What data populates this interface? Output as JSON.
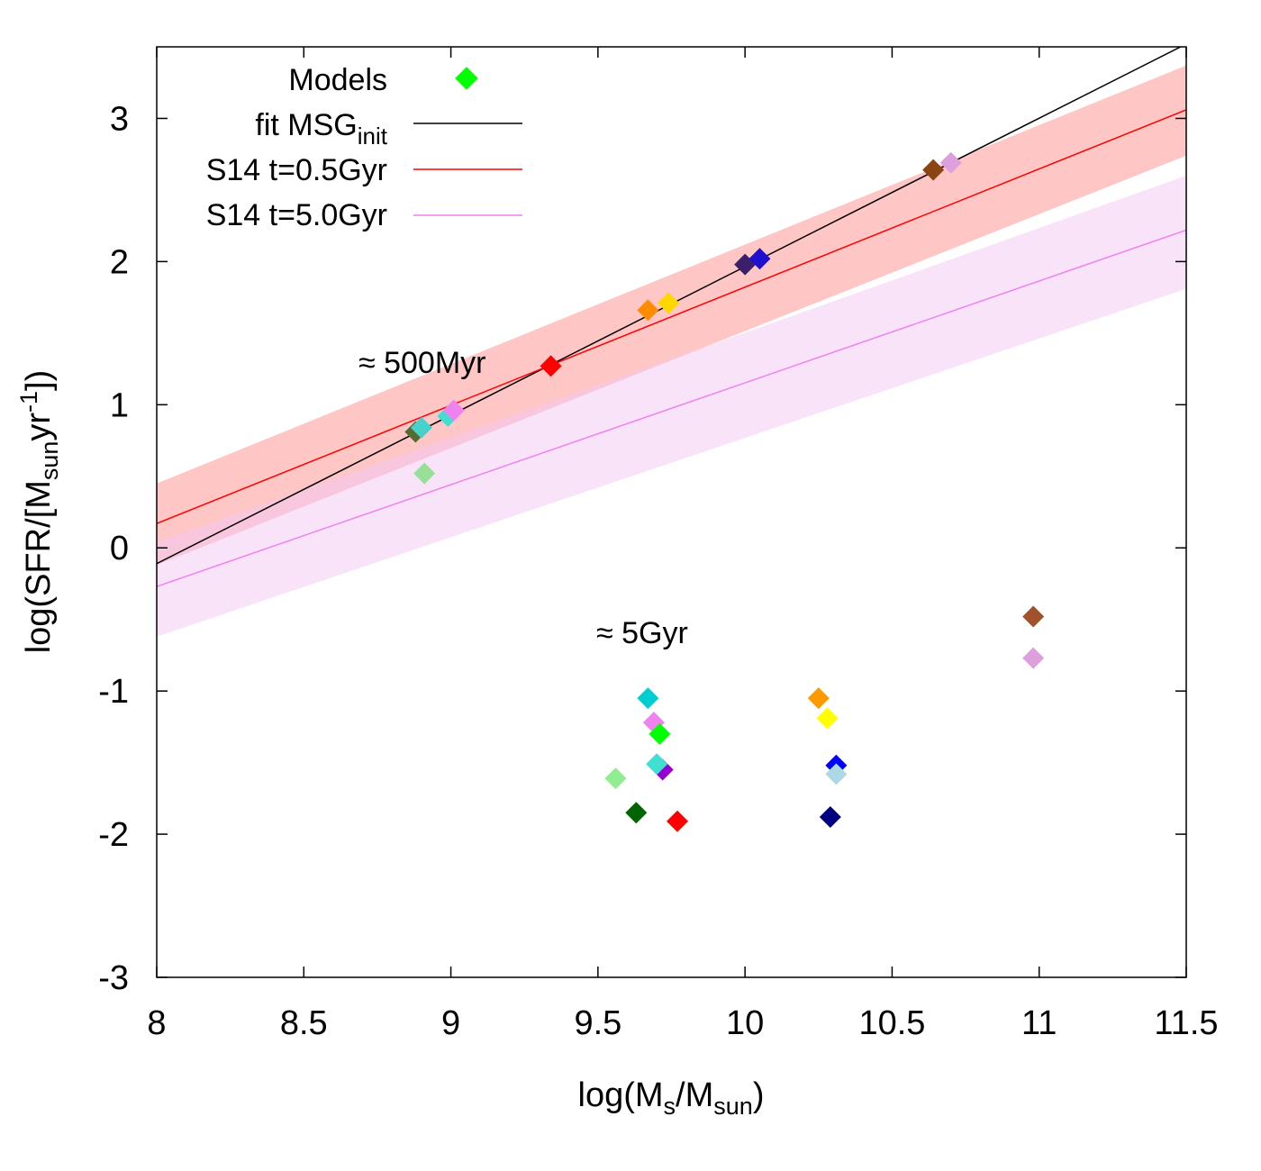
{
  "chart_data": {
    "type": "scatter",
    "xlabel": {
      "base": "log(M",
      "sub1": "s",
      "mid": "/M",
      "sub2": "sun",
      "end": ")"
    },
    "ylabel": {
      "base": "log(SFR/[M",
      "sub": "sun",
      "mid": "yr",
      "sup": "-1",
      "end": "])"
    },
    "xlim": [
      8,
      11.5
    ],
    "ylim": [
      -3,
      3.5
    ],
    "xticks": [
      8,
      8.5,
      9,
      9.5,
      10,
      10.5,
      11,
      11.5
    ],
    "xtick_labels": [
      "8",
      "8.5",
      "9",
      "9.5",
      "10",
      "10.5",
      "11",
      "11.5"
    ],
    "yticks": [
      -3,
      -2,
      -1,
      0,
      1,
      2,
      3
    ],
    "ytick_labels": [
      "-3",
      "-2",
      "-1",
      "0",
      "1",
      "2",
      "3"
    ],
    "legend": {
      "position": "top-left",
      "entries": [
        {
          "label": "Models",
          "marker": "diamond",
          "color": "#00ff00"
        },
        {
          "label": "fit MSG",
          "sub": "init",
          "color": "#000000"
        },
        {
          "label": "S14 t=0.5Gyr",
          "color": "#ff0000"
        },
        {
          "label": "S14 t=5.0Gyr",
          "color": "#ee82ee"
        }
      ]
    },
    "annotations": [
      {
        "text": "≈ 500Myr",
        "x": 9.0,
        "y": 1.3
      },
      {
        "text": "≈ 5Gyr",
        "x": 9.5,
        "y": -0.6
      }
    ],
    "lines": [
      {
        "name": "fit MSG_init",
        "color": "#000000",
        "x": [
          8.0,
          11.5
        ],
        "y": [
          -0.11,
          3.52
        ]
      },
      {
        "name": "S14 t=0.5Gyr",
        "color": "#ff0000",
        "x": [
          8.0,
          11.5
        ],
        "y": [
          0.17,
          3.06
        ]
      },
      {
        "name": "S14 t=5.0Gyr",
        "color": "#ee82ee",
        "x": [
          8.0,
          11.5
        ],
        "y": [
          -0.27,
          2.22
        ]
      }
    ],
    "bands": [
      {
        "name": "S14 t=0.5Gyr scatter",
        "color": "#ffb3b3",
        "opacity": 0.75,
        "x": [
          8.0,
          11.5
        ],
        "upper": [
          0.45,
          3.37
        ],
        "lower": [
          -0.12,
          2.74
        ]
      },
      {
        "name": "S14 t=5.0Gyr scatter",
        "color": "#f3c8f3",
        "opacity": 0.5,
        "x": [
          8.0,
          11.5
        ],
        "upper": [
          0.04,
          2.6
        ],
        "lower": [
          -0.62,
          1.81
        ]
      }
    ],
    "series": [
      {
        "name": "Models (≈500Myr)",
        "points": [
          {
            "x": 8.88,
            "y": 0.81,
            "color": "#556b2f"
          },
          {
            "x": 8.9,
            "y": 0.84,
            "color": "#48d1cc"
          },
          {
            "x": 8.91,
            "y": 0.52,
            "color": "#98e098"
          },
          {
            "x": 8.99,
            "y": 0.92,
            "color": "#40e0d0"
          },
          {
            "x": 9.01,
            "y": 0.96,
            "color": "#ee82ee"
          },
          {
            "x": 9.34,
            "y": 1.27,
            "color": "#ff0000"
          },
          {
            "x": 9.67,
            "y": 1.66,
            "color": "#ff8c00"
          },
          {
            "x": 9.74,
            "y": 1.71,
            "color": "#ffd700"
          },
          {
            "x": 10.0,
            "y": 1.98,
            "color": "#3b1f6b"
          },
          {
            "x": 10.05,
            "y": 2.02,
            "color": "#1e10cc"
          },
          {
            "x": 10.64,
            "y": 2.64,
            "color": "#8b4513"
          },
          {
            "x": 10.7,
            "y": 2.69,
            "color": "#dda0dd"
          }
        ]
      },
      {
        "name": "Models (≈5Gyr)",
        "points": [
          {
            "x": 9.67,
            "y": -1.05,
            "color": "#00ced1"
          },
          {
            "x": 9.69,
            "y": -1.22,
            "color": "#ee82ee"
          },
          {
            "x": 9.71,
            "y": -1.3,
            "color": "#00ff00"
          },
          {
            "x": 9.72,
            "y": -1.55,
            "color": "#9400d3"
          },
          {
            "x": 9.7,
            "y": -1.51,
            "color": "#40e0d0"
          },
          {
            "x": 9.56,
            "y": -1.61,
            "color": "#90ee90"
          },
          {
            "x": 9.63,
            "y": -1.85,
            "color": "#006400"
          },
          {
            "x": 9.77,
            "y": -1.91,
            "color": "#ff0000"
          },
          {
            "x": 10.25,
            "y": -1.05,
            "color": "#ff9900"
          },
          {
            "x": 10.28,
            "y": -1.19,
            "color": "#ffff00"
          },
          {
            "x": 10.31,
            "y": -1.52,
            "color": "#0000ff"
          },
          {
            "x": 10.31,
            "y": -1.58,
            "color": "#add8e6"
          },
          {
            "x": 10.29,
            "y": -1.88,
            "color": "#000080"
          },
          {
            "x": 10.98,
            "y": -0.48,
            "color": "#a0522d"
          },
          {
            "x": 10.98,
            "y": -0.77,
            "color": "#dda0dd"
          }
        ]
      }
    ]
  }
}
